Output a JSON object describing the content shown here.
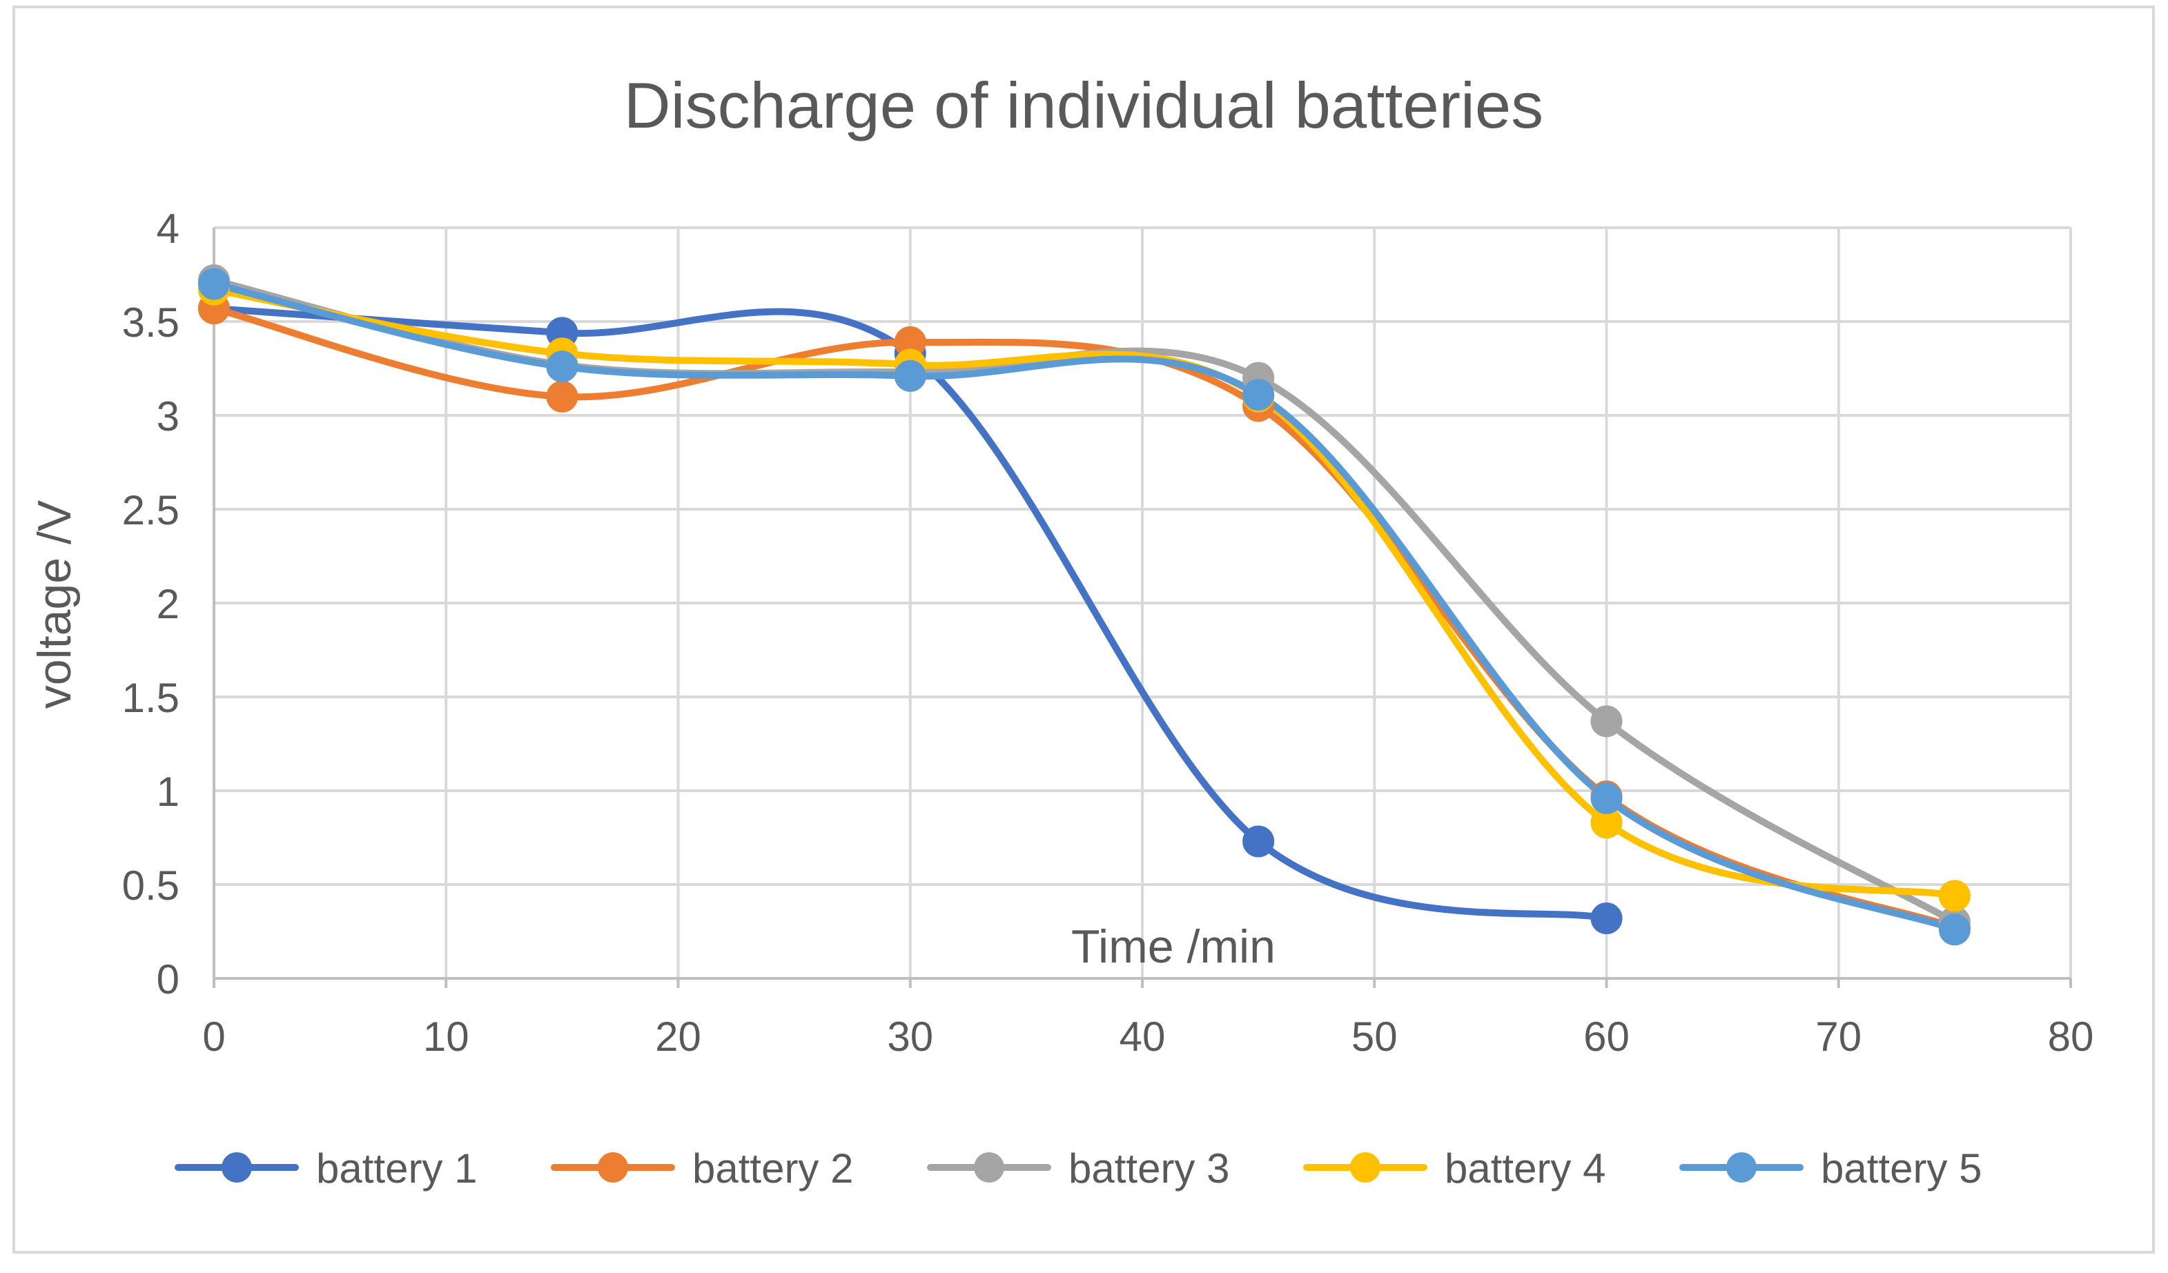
{
  "chart_data": {
    "type": "line",
    "title": "Discharge of  individual batteries",
    "xlabel": "Time /min",
    "ylabel": "voltage /V",
    "xlim": [
      0,
      80
    ],
    "ylim": [
      0,
      4
    ],
    "xticks": [
      0,
      10,
      20,
      30,
      40,
      50,
      60,
      70,
      80
    ],
    "yticks": [
      0,
      0.5,
      1,
      1.5,
      2,
      2.5,
      3,
      3.5,
      4
    ],
    "xtick_labels": [
      "0",
      "10",
      "20",
      "30",
      "40",
      "50",
      "60",
      "70",
      "80"
    ],
    "ytick_labels": [
      "0",
      "0.5",
      "1",
      "1.5",
      "2",
      "2.5",
      "3",
      "3.5",
      "4"
    ],
    "grid": true,
    "legend_position": "bottom",
    "series": [
      {
        "name": "battery 1",
        "color": "#4472C4",
        "x": [
          0,
          15,
          30,
          45,
          60
        ],
        "y": [
          3.57,
          3.44,
          3.33,
          0.73,
          0.32
        ]
      },
      {
        "name": "battery 2",
        "color": "#ED7D31",
        "x": [
          0,
          15,
          30,
          45,
          60,
          75
        ],
        "y": [
          3.57,
          3.1,
          3.39,
          3.05,
          0.97,
          0.27
        ]
      },
      {
        "name": "battery 3",
        "color": "#A5A5A5",
        "x": [
          0,
          15,
          30,
          45,
          60,
          75
        ],
        "y": [
          3.72,
          3.27,
          3.23,
          3.2,
          1.37,
          0.3
        ]
      },
      {
        "name": "battery 4",
        "color": "#FFC000",
        "x": [
          0,
          15,
          30,
          45,
          60,
          75
        ],
        "y": [
          3.67,
          3.33,
          3.27,
          3.1,
          0.83,
          0.44
        ]
      },
      {
        "name": "battery 5",
        "color": "#5B9BD5",
        "x": [
          0,
          15,
          30,
          45,
          60,
          75
        ],
        "y": [
          3.7,
          3.26,
          3.21,
          3.11,
          0.96,
          0.26
        ]
      }
    ]
  }
}
